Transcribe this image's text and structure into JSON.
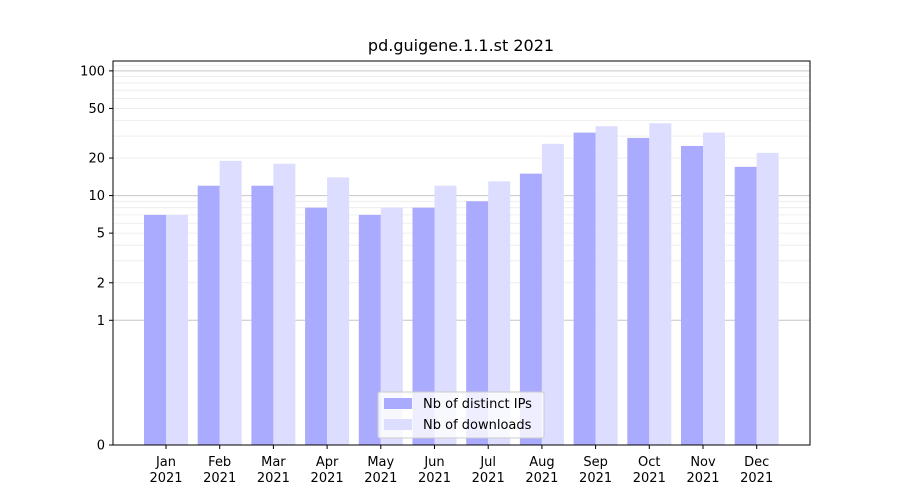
{
  "chart_data": {
    "type": "bar",
    "title": "pd.guigene.1.1.st 2021",
    "xlabel": "",
    "ylabel": "",
    "yscale": "symlog",
    "ylim": [
      0,
      120
    ],
    "yticks": [
      0,
      1,
      2,
      5,
      10,
      20,
      50,
      100
    ],
    "categories": [
      [
        "Jan",
        "2021"
      ],
      [
        "Feb",
        "2021"
      ],
      [
        "Mar",
        "2021"
      ],
      [
        "Apr",
        "2021"
      ],
      [
        "May",
        "2021"
      ],
      [
        "Jun",
        "2021"
      ],
      [
        "Jul",
        "2021"
      ],
      [
        "Aug",
        "2021"
      ],
      [
        "Sep",
        "2021"
      ],
      [
        "Oct",
        "2021"
      ],
      [
        "Nov",
        "2021"
      ],
      [
        "Dec",
        "2021"
      ]
    ],
    "series": [
      {
        "name": "Nb of distinct IPs",
        "color": "#aaaaff",
        "values": [
          7,
          12,
          12,
          8,
          7,
          8,
          9,
          15,
          32,
          29,
          25,
          17
        ]
      },
      {
        "name": "Nb of downloads",
        "color": "#ddddff",
        "values": [
          7,
          19,
          18,
          14,
          8,
          12,
          13,
          26,
          36,
          38,
          32,
          22
        ]
      }
    ],
    "grid": true,
    "legend": "bottom-center"
  }
}
